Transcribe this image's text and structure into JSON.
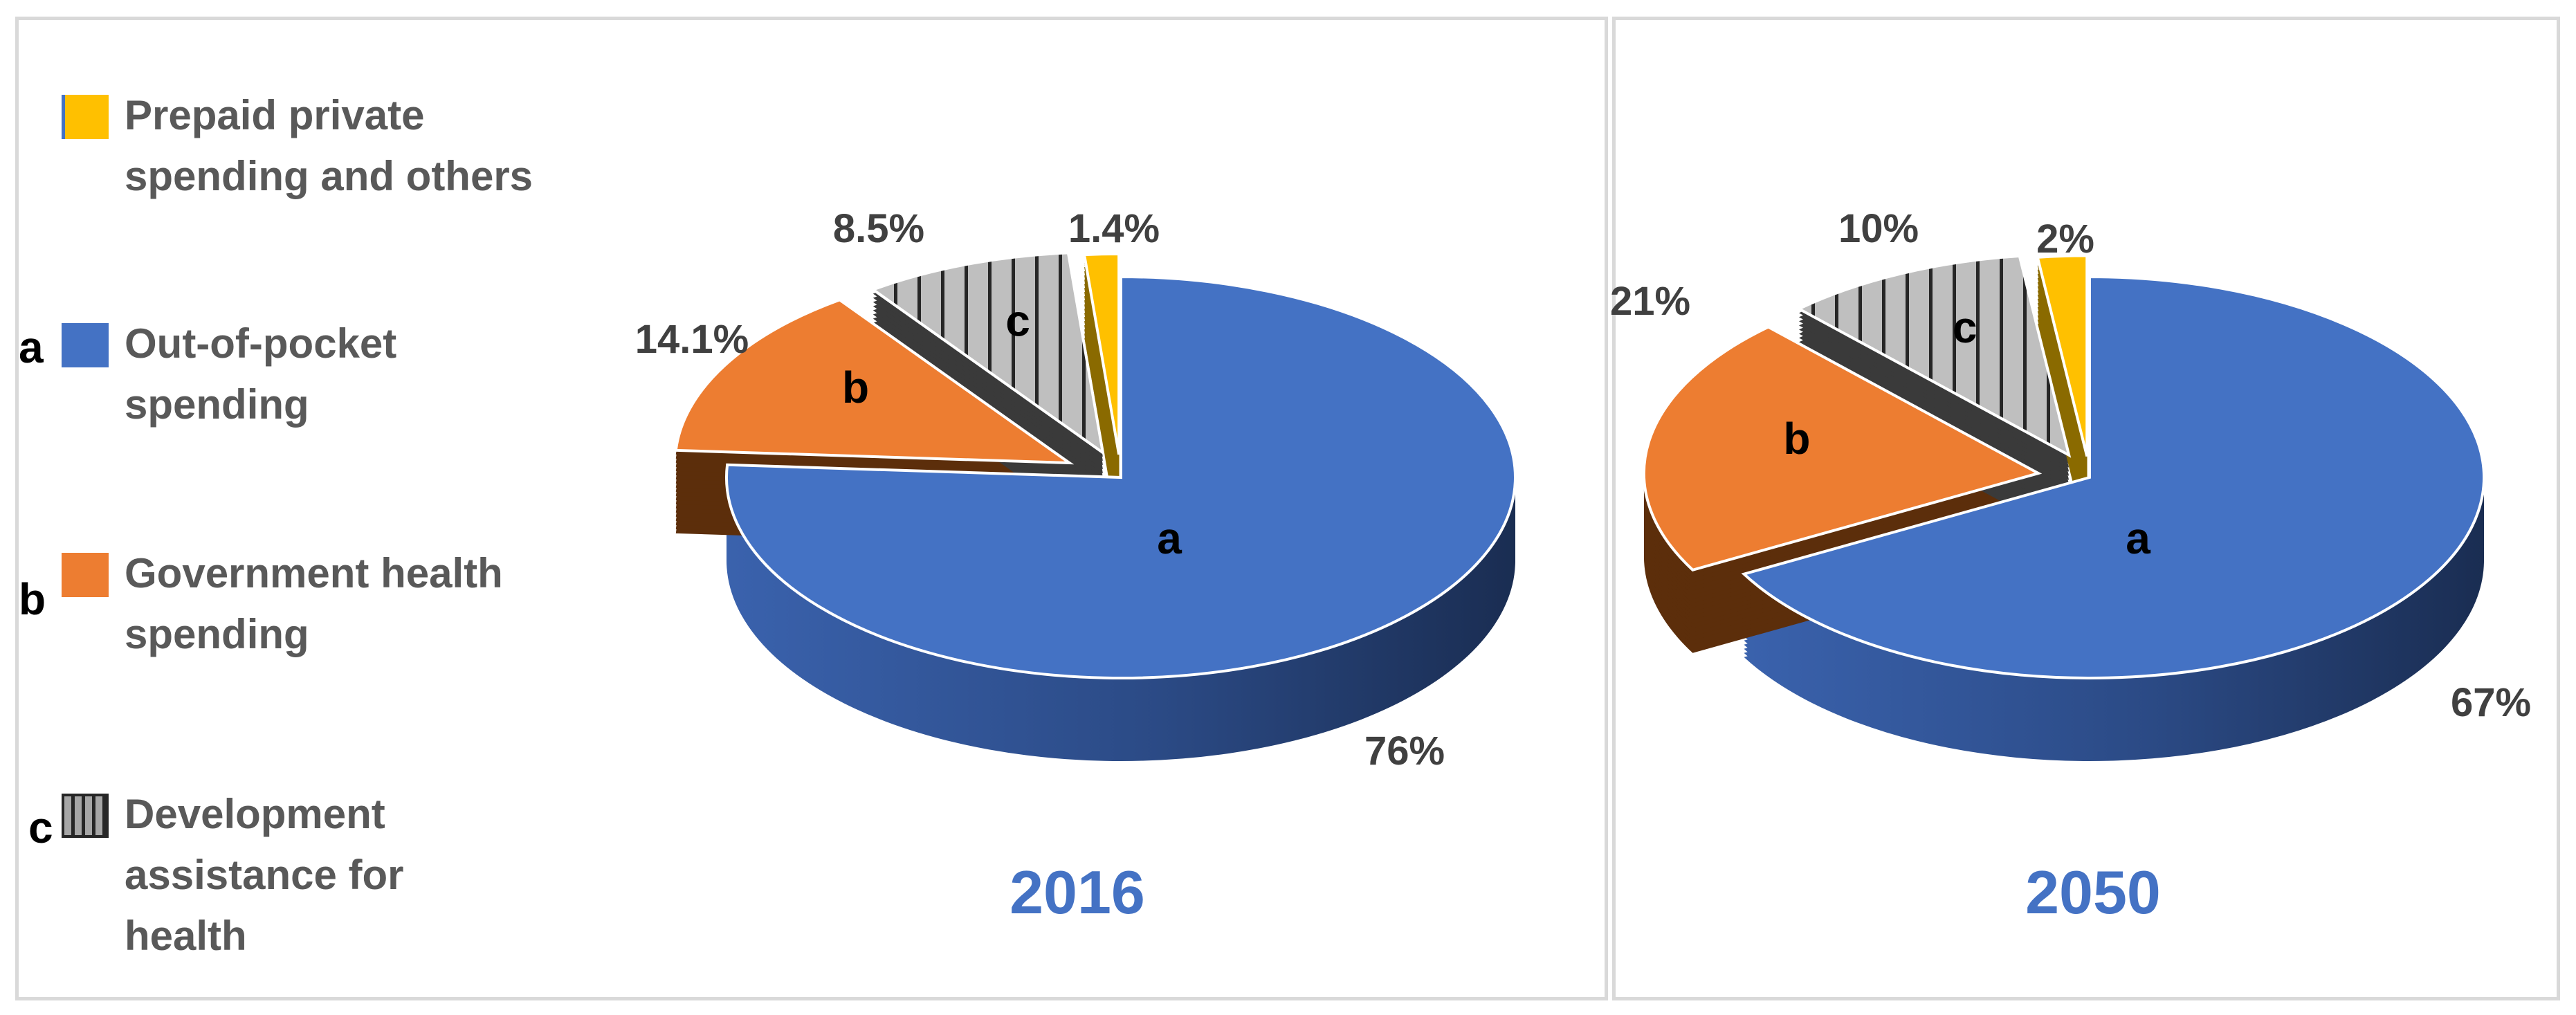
{
  "legend": [
    {
      "letter": "",
      "label": "Prepaid private\nspending and others",
      "color": "#ffc000",
      "pattern": "solid"
    },
    {
      "letter": "a",
      "label": "Out-of-pocket\nspending",
      "color": "#4472c4",
      "pattern": "solid"
    },
    {
      "letter": "b",
      "label": "Government health\nspending",
      "color": "#ed7d31",
      "pattern": "solid"
    },
    {
      "letter": "c",
      "label": "Development\nassistance for\nhealth",
      "color": "#a6a6a6",
      "pattern": "vertical-stripes"
    }
  ],
  "chart_data": [
    {
      "type": "pie",
      "title": "2016",
      "slices": [
        {
          "letter": "a",
          "name": "Out-of-pocket spending",
          "value": 76,
          "label": "76%",
          "color": "#4472c4"
        },
        {
          "letter": "b",
          "name": "Government health spending",
          "value": 14.1,
          "label": "14.1%",
          "color": "#ed7d31"
        },
        {
          "letter": "c",
          "name": "Development assistance for health",
          "value": 8.5,
          "label": "8.5%",
          "color": "#a6a6a6"
        },
        {
          "letter": "",
          "name": "Prepaid private spending and others",
          "value": 1.4,
          "label": "1.4%",
          "color": "#ffc000"
        }
      ]
    },
    {
      "type": "pie",
      "title": "2050",
      "slices": [
        {
          "letter": "a",
          "name": "Out-of-pocket spending",
          "value": 67,
          "label": "67%",
          "color": "#4472c4"
        },
        {
          "letter": "b",
          "name": "Government health spending",
          "value": 21,
          "label": "21%",
          "color": "#ed7d31"
        },
        {
          "letter": "c",
          "name": "Development assistance for health",
          "value": 10,
          "label": "10%",
          "color": "#a6a6a6"
        },
        {
          "letter": "",
          "name": "Prepaid private spending and others",
          "value": 2,
          "label": "2%",
          "color": "#ffc000"
        }
      ]
    }
  ]
}
